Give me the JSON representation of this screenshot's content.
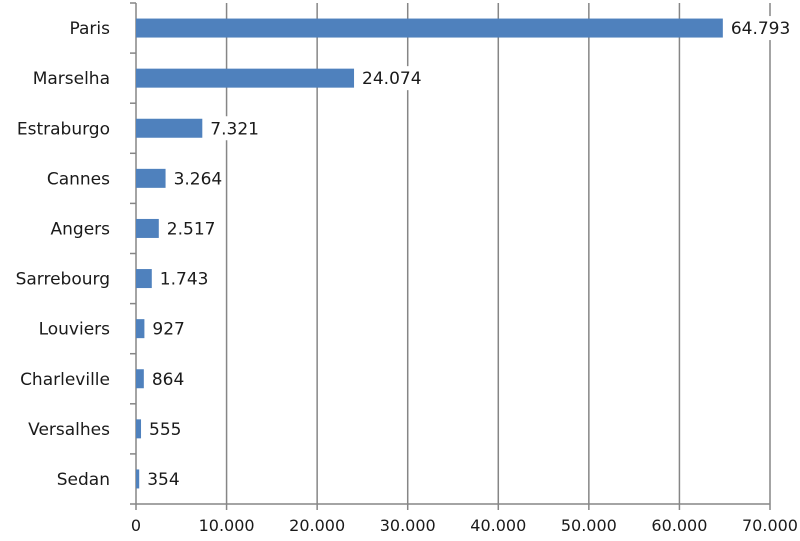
{
  "chart_data": {
    "type": "bar",
    "orientation": "horizontal",
    "categories": [
      "Paris",
      "Marselha",
      "Estraburgo",
      "Cannes",
      "Angers",
      "Sarrebourg",
      "Louviers",
      "Charleville",
      "Versalhes",
      "Sedan"
    ],
    "values": [
      64793,
      24074,
      7321,
      3264,
      2517,
      1743,
      927,
      864,
      555,
      354
    ],
    "value_labels": [
      "64.793",
      "24.074",
      "7.321",
      "3.264",
      "2.517",
      "1.743",
      "927",
      "864",
      "555",
      "354"
    ],
    "xlim": [
      0,
      70000
    ],
    "x_ticks": [
      0,
      10000,
      20000,
      30000,
      40000,
      50000,
      60000,
      70000
    ],
    "x_tick_labels": [
      "0",
      "10.000",
      "20.000",
      "30.000",
      "40.000",
      "50.000",
      "60.000",
      "70.000"
    ],
    "grid": "vertical",
    "legend": "none",
    "bar_color": "#4f81bd",
    "grid_color": "#868686"
  }
}
